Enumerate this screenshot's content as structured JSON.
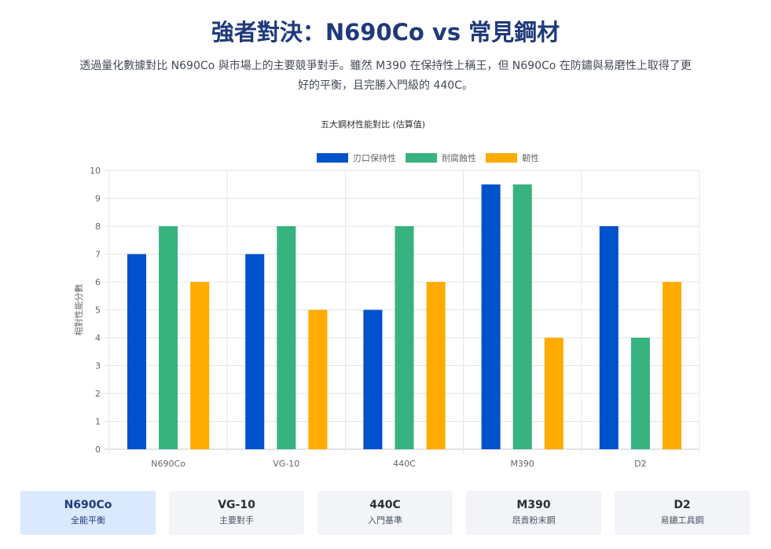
{
  "header": {
    "title": "強者對決：N690Co vs 常見鋼材",
    "subtitle": "透過量化數據對比 N690Co 與市場上的主要競爭對手。雖然 M390 在保持性上稱王，但 N690Co 在防鏽與易磨性上取得了更好的平衡，且完勝入門級的 440C。"
  },
  "chart_data": {
    "type": "bar",
    "title": "五大鋼材性能對比 (估算值)",
    "ylabel": "相對性能分數",
    "xlabel": "",
    "ylim": [
      0,
      10
    ],
    "yticks": [
      0,
      1,
      2,
      3,
      4,
      5,
      6,
      7,
      8,
      9,
      10
    ],
    "grid": true,
    "legend_position": "top",
    "categories": [
      "N690Co",
      "VG-10",
      "440C",
      "M390",
      "D2"
    ],
    "series": [
      {
        "name": "刃口保持性",
        "color": "#0052cc",
        "values": [
          7,
          7,
          5,
          9.5,
          8
        ]
      },
      {
        "name": "耐腐蝕性",
        "color": "#36b37e",
        "values": [
          8,
          8,
          8,
          9.5,
          4
        ]
      },
      {
        "name": "韌性",
        "color": "#ffab00",
        "values": [
          6,
          5,
          6,
          4,
          6
        ]
      }
    ]
  },
  "cards": [
    {
      "name": "N690Co",
      "desc": "全能平衡",
      "active": true
    },
    {
      "name": "VG-10",
      "desc": "主要對手",
      "active": false
    },
    {
      "name": "440C",
      "desc": "入門基準",
      "active": false
    },
    {
      "name": "M390",
      "desc": "昂貴粉末鋼",
      "active": false
    },
    {
      "name": "D2",
      "desc": "易鏽工具鋼",
      "active": false
    }
  ]
}
